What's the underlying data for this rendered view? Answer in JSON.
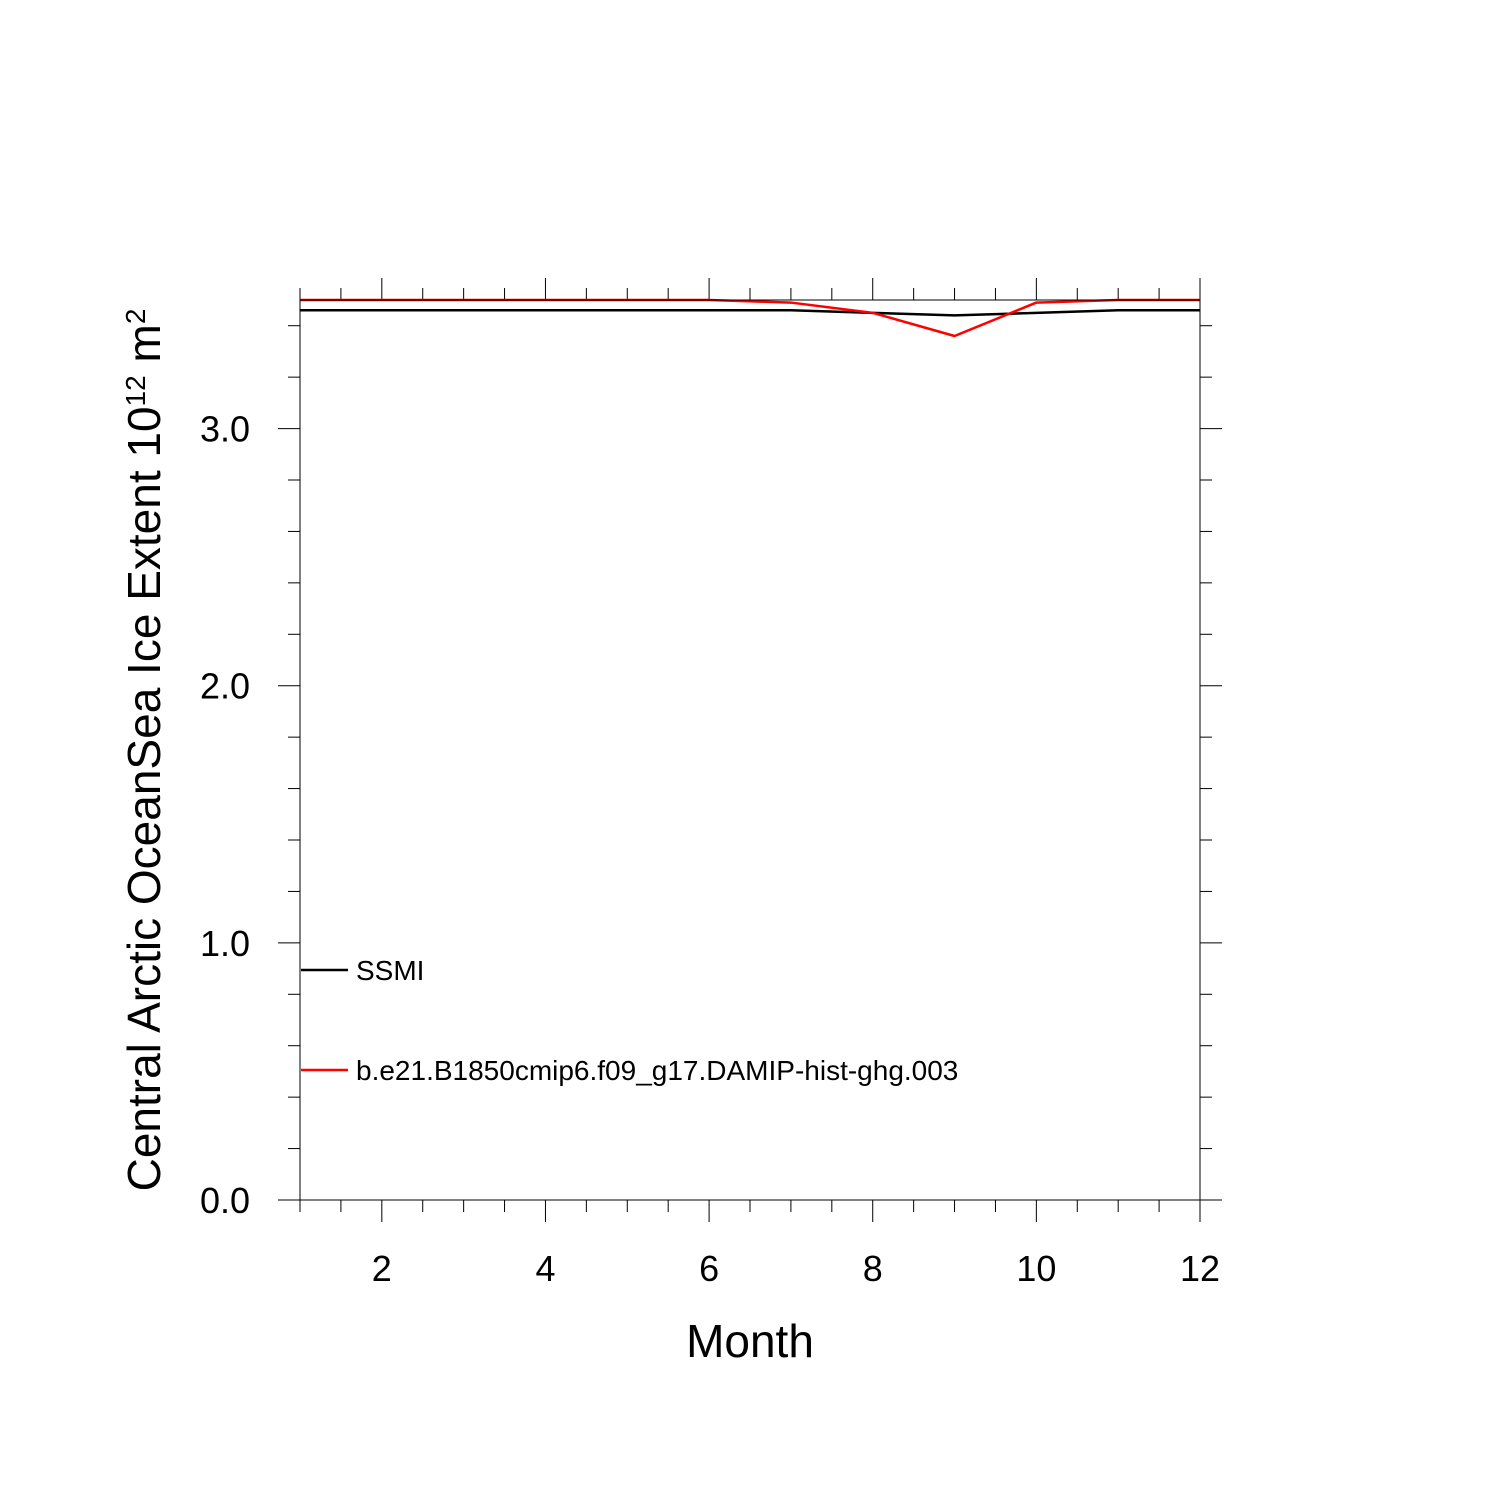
{
  "chart_data": {
    "type": "line",
    "xlabel": "Month",
    "ylabel_main": "Central Arctic OceanSea Ice Extent 10",
    "ylabel_exp": "12",
    "ylabel_unit": " m",
    "ylabel_unit_exp": "2",
    "xlim": [
      1,
      12
    ],
    "ylim": [
      0,
      3.5
    ],
    "x_ticks": [
      2,
      4,
      6,
      8,
      10,
      12
    ],
    "x_tick_labels": [
      "2",
      "4",
      "6",
      "8",
      "10",
      "12"
    ],
    "y_ticks": [
      0,
      1,
      2,
      3
    ],
    "y_tick_labels": [
      "0.0",
      "1.0",
      "2.0",
      "3.0"
    ],
    "legend_placement": "lower-left",
    "x": [
      1,
      2,
      3,
      4,
      5,
      6,
      7,
      8,
      9,
      10,
      11,
      12
    ],
    "series": [
      {
        "name": "SSMI",
        "color": "#000000",
        "values": [
          3.46,
          3.46,
          3.46,
          3.46,
          3.46,
          3.46,
          3.46,
          3.45,
          3.44,
          3.45,
          3.46,
          3.46
        ]
      },
      {
        "name": "b.e21.B1850cmip6.f09_g17.DAMIP-hist-ghg.003",
        "color": "#ff0000",
        "values": [
          3.5,
          3.5,
          3.5,
          3.5,
          3.5,
          3.5,
          3.49,
          3.45,
          3.36,
          3.49,
          3.5,
          3.5
        ]
      }
    ]
  }
}
